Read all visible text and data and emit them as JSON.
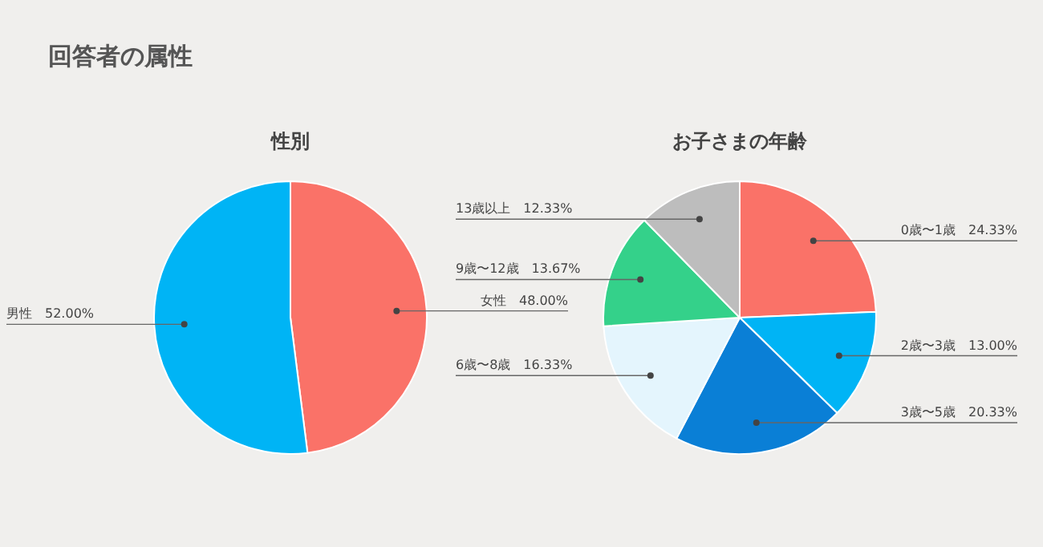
{
  "chart_data": [
    {
      "type": "pie",
      "title": "性別",
      "annotations": [
        "回答者の属性"
      ],
      "categories": [
        "女性",
        "男性"
      ],
      "values": [
        48,
        52
      ],
      "colors": [
        "#fa7268",
        "#00b4f5"
      ],
      "value_labels": [
        "48.00%",
        "52.00%"
      ]
    },
    {
      "type": "pie",
      "title": "お子さまの年齢",
      "categories": [
        "0歳〜1歳",
        "2歳〜3歳",
        "3歳〜5歳",
        "6歳〜8歳",
        "9歳〜12歳",
        "13歳以上"
      ],
      "values": [
        24.33,
        13.0,
        20.33,
        16.33,
        13.67,
        12.33
      ],
      "colors": [
        "#fa7268",
        "#00b4f5",
        "#0a7fd6",
        "#e4f5fd",
        "#34d18a",
        "#bdbdbd"
      ],
      "value_labels": [
        "24.33%",
        "13.00%",
        "20.33%",
        "16.33%",
        "13.67%",
        "12.33%"
      ]
    }
  ]
}
